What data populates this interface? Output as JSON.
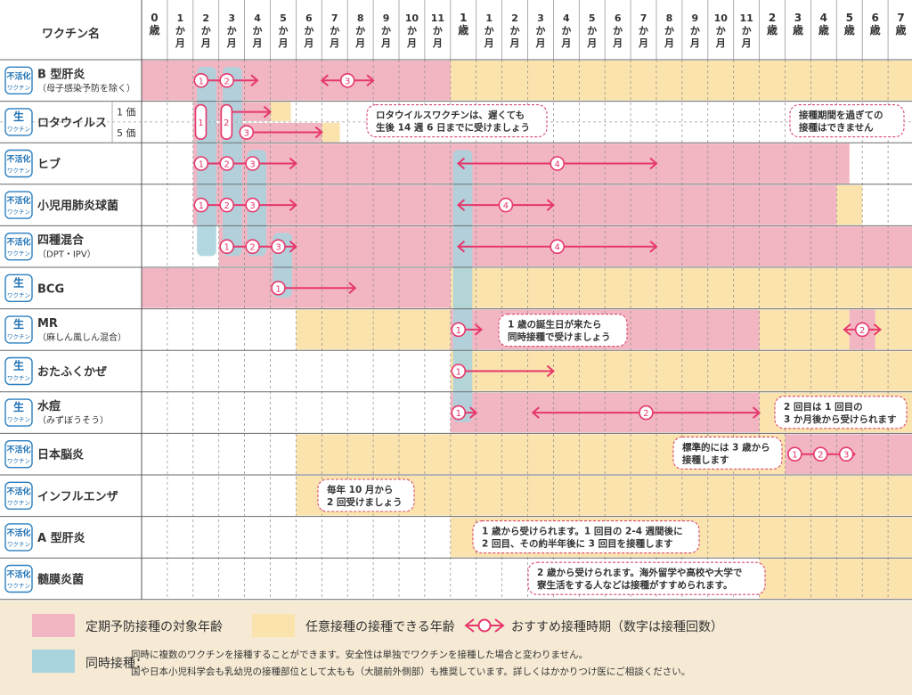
{
  "header": {
    "vaccine_column_title": "ワクチン名"
  },
  "columns": [
    [
      "0",
      "歳"
    ],
    [
      "1",
      "か",
      "月"
    ],
    [
      "2",
      "か",
      "月"
    ],
    [
      "3",
      "か",
      "月"
    ],
    [
      "4",
      "か",
      "月"
    ],
    [
      "5",
      "か",
      "月"
    ],
    [
      "6",
      "か",
      "月"
    ],
    [
      "7",
      "か",
      "月"
    ],
    [
      "8",
      "か",
      "月"
    ],
    [
      "9",
      "か",
      "月"
    ],
    [
      "10",
      "か",
      "月"
    ],
    [
      "11",
      "か",
      "月"
    ],
    [
      "1",
      "歳"
    ],
    [
      "1",
      "か",
      "月"
    ],
    [
      "2",
      "か",
      "月"
    ],
    [
      "3",
      "か",
      "月"
    ],
    [
      "4",
      "か",
      "月"
    ],
    [
      "5",
      "か",
      "月"
    ],
    [
      "6",
      "か",
      "月"
    ],
    [
      "7",
      "か",
      "月"
    ],
    [
      "8",
      "か",
      "月"
    ],
    [
      "9",
      "か",
      "月"
    ],
    [
      "10",
      "か",
      "月"
    ],
    [
      "11",
      "か",
      "月"
    ],
    [
      "2",
      "歳"
    ],
    [
      "3",
      "歳"
    ],
    [
      "4",
      "歳"
    ],
    [
      "5",
      "歳"
    ],
    [
      "6",
      "歳"
    ],
    [
      "7",
      "歳"
    ]
  ],
  "badges": {
    "inactivated": [
      "不活化",
      "ワクチン"
    ],
    "live": [
      "生",
      "ワクチン"
    ]
  },
  "colors": {
    "routine": "#f2b6c3",
    "optional": "#fbe3ae",
    "simultaneous": "#a9d3dd",
    "recommended": "#e6376b"
  },
  "chart_data": {
    "type": "table",
    "columns_axis": "age",
    "rows": [
      {
        "name": "B 型肝炎",
        "sub": "（母子感染予防を除く）",
        "type": "inactivated",
        "routine": [
          [
            0,
            12
          ]
        ],
        "optional": [
          [
            12,
            30
          ]
        ],
        "doses": [
          {
            "from": 2,
            "to": 4,
            "labels": [
              "1",
              "2"
            ]
          },
          {
            "from": 7,
            "to": 9,
            "labels": [
              "3"
            ]
          }
        ]
      },
      {
        "name": "ロタウイルス",
        "sub_rows": [
          "1 価",
          "5 価"
        ],
        "type": "live",
        "routine": [
          [
            2,
            5.3
          ],
          [
            2,
            7.5
          ]
        ],
        "optional_top": [
          [
            5,
            5.8
          ]
        ],
        "optional_bottom": [
          [
            7,
            7.7
          ]
        ],
        "doses_top": [
          {
            "from": 2,
            "to": 4.5,
            "labels": [
              "1",
              "2"
            ]
          }
        ],
        "doses_bottom": [
          {
            "from": 2,
            "to": 6.5,
            "labels": [
              "3"
            ]
          }
        ]
      },
      {
        "name": "ヒブ",
        "type": "inactivated",
        "routine": [
          [
            2,
            27.5
          ]
        ],
        "doses": [
          {
            "from": 2,
            "to": 6,
            "labels": [
              "1",
              "2",
              "3"
            ]
          },
          {
            "from": 12,
            "to": 20,
            "labels": [
              "4"
            ]
          }
        ]
      },
      {
        "name": "小児用肺炎球菌",
        "type": "inactivated",
        "routine": [
          [
            2,
            27
          ]
        ],
        "optional": [
          [
            27,
            28
          ]
        ],
        "doses": [
          {
            "from": 2,
            "to": 6,
            "labels": [
              "1",
              "2",
              "3"
            ]
          },
          {
            "from": 12,
            "to": 16,
            "labels": [
              "4"
            ]
          }
        ]
      },
      {
        "name": "四種混合",
        "sub": "（DPT・IPV）",
        "type": "inactivated",
        "routine": [
          [
            3,
            30
          ]
        ],
        "doses": [
          {
            "from": 3,
            "to": 6,
            "labels": [
              "1",
              "2",
              "3"
            ]
          },
          {
            "from": 12,
            "to": 20,
            "labels": [
              "4"
            ]
          }
        ]
      },
      {
        "name": "BCG",
        "type": "live",
        "routine": [
          [
            0,
            12
          ]
        ],
        "optional": [
          [
            12,
            30
          ]
        ],
        "doses": [
          {
            "from": 5,
            "to": 8,
            "labels": [
              "1"
            ]
          }
        ]
      },
      {
        "name": "MR",
        "sub": "（麻しん風しん混合）",
        "type": "live",
        "optional": [
          [
            6,
            12
          ],
          [
            12,
            30
          ]
        ],
        "routine": [
          [
            12,
            24
          ],
          [
            27.5,
            28.5
          ]
        ],
        "doses": [
          {
            "from": 12,
            "to": 13,
            "labels": [
              "1"
            ]
          },
          {
            "from": 28,
            "to": 28,
            "labels": [
              "2"
            ]
          }
        ]
      },
      {
        "name": "おたふくかぜ",
        "type": "live",
        "optional": [
          [
            12,
            30
          ]
        ],
        "doses": [
          {
            "from": 12,
            "to": 16,
            "labels": [
              "1"
            ]
          }
        ]
      },
      {
        "name": "水痘",
        "sub": "（みずぼうそう）",
        "type": "live",
        "routine": [
          [
            12,
            24
          ]
        ],
        "optional": [
          [
            24,
            30
          ]
        ],
        "doses": [
          {
            "from": 12,
            "to": 13,
            "labels": [
              "1"
            ]
          },
          {
            "from": 15,
            "to": 24,
            "labels": [
              "2"
            ]
          }
        ]
      },
      {
        "name": "日本脳炎",
        "type": "inactivated",
        "optional": [
          [
            6,
            25
          ]
        ],
        "routine": [
          [
            25,
            30
          ]
        ],
        "doses": [
          {
            "from": 25,
            "to": 27,
            "labels": [
              "1",
              "2",
              "3"
            ]
          }
        ]
      },
      {
        "name": "インフルエンザ",
        "type": "inactivated",
        "optional": [
          [
            6,
            30
          ]
        ],
        "doses": []
      },
      {
        "name": "A 型肝炎",
        "type": "inactivated",
        "optional": [
          [
            12,
            30
          ]
        ],
        "doses": []
      },
      {
        "name": "髄膜炎菌",
        "type": "inactivated",
        "optional": [
          [
            24,
            30
          ]
        ],
        "doses": []
      }
    ],
    "simultaneous_groups": [
      [
        2,
        2.5
      ],
      [
        3,
        3.5
      ],
      [
        4,
        4.5
      ],
      [
        5,
        5.5
      ],
      [
        12,
        12.5
      ]
    ],
    "notes": [
      {
        "row": 1,
        "lines": [
          "ロタウイルスワクチンは、遅くても",
          "生後 14 週 6 日までに受けましょう"
        ]
      },
      {
        "row": 1,
        "lines": [
          "接種期間を過ぎての",
          "接種はできません"
        ]
      },
      {
        "row": 6,
        "lines": [
          "1 歳の誕生日が来たら",
          "同時接種で受けましょう"
        ]
      },
      {
        "row": 8,
        "lines": [
          "2 回目は 1 回目の",
          "3 か月後から受けられます"
        ]
      },
      {
        "row": 9,
        "lines": [
          "標準的には 3 歳から",
          "接種します"
        ]
      },
      {
        "row": 10,
        "lines": [
          "毎年 10 月から",
          "2 回受けましょう"
        ]
      },
      {
        "row": 11,
        "lines": [
          "1 歳から受けられます。1 回目の 2-4 週間後に",
          "2 回目、その約半年後に 3 回目を接種します"
        ]
      },
      {
        "row": 12,
        "lines": [
          "2 歳から受けられます。海外留学や高校や大学で",
          "寮生活をする人などは接種がすすめられます。"
        ]
      }
    ]
  },
  "legend": {
    "routine": "定期予防接種の対象年齢",
    "optional": "任意接種の接種できる年齢",
    "recommended": "おすすめ接種時期（数字は接種回数）",
    "simultaneous_title": "同時接種：",
    "simultaneous_note_1": "同時に複数のワクチンを接種することができます。安全性は単独でワクチンを接種した場合と変わりません。",
    "simultaneous_note_2": "国や日本小児科学会も乳幼児の接種部位として太もも（大腿前外側部）も推奨しています。詳しくはかかりつけ医にご相談ください。"
  }
}
